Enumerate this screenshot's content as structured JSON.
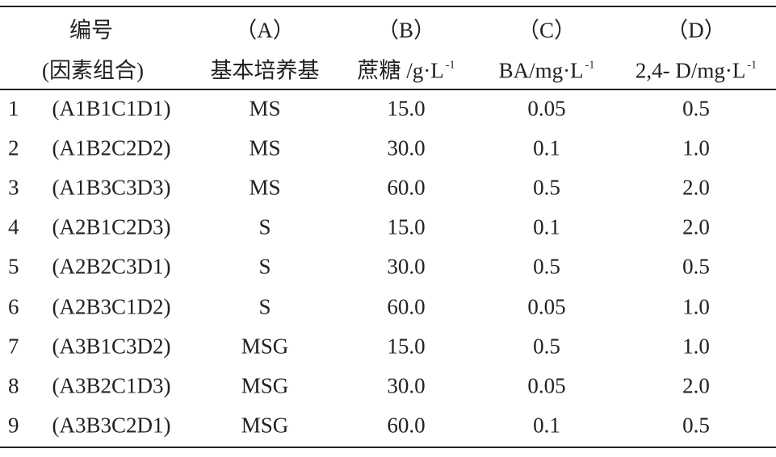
{
  "table": {
    "header": {
      "row1": [
        "编号",
        "（A）",
        "（B）",
        "（C）",
        "（D）"
      ],
      "row2": [
        {
          "text": "(因素组合)"
        },
        {
          "text": "基本培养基"
        },
        {
          "text": "蔗糖 /g·L",
          "sup": "-1"
        },
        {
          "text": "BA/mg·L",
          "sup": "-1"
        },
        {
          "text": "2,4- D/mg·L",
          "sup": "-1"
        }
      ]
    },
    "rows": [
      [
        "1",
        "(A1B1C1D1)",
        "MS",
        "15.0",
        "0.05",
        "0.5"
      ],
      [
        "2",
        "(A1B2C2D2)",
        "MS",
        "30.0",
        "0.1",
        "1.0"
      ],
      [
        "3",
        "(A1B3C3D3)",
        "MS",
        "60.0",
        "0.5",
        "2.0"
      ],
      [
        "4",
        "(A2B1C2D3)",
        "S",
        "15.0",
        "0.1",
        "2.0"
      ],
      [
        "5",
        "(A2B2C3D1)",
        "S",
        "30.0",
        "0.5",
        "0.5"
      ],
      [
        "6",
        "(A2B3C1D2)",
        "S",
        "60.0",
        "0.05",
        "1.0"
      ],
      [
        "7",
        "(A3B1C3D2)",
        "MSG",
        "15.0",
        "0.5",
        "1.0"
      ],
      [
        "8",
        "(A3B2C1D3)",
        "MSG",
        "30.0",
        "0.05",
        "2.0"
      ],
      [
        "9",
        "(A3B3C2D1)",
        "MSG",
        "60.0",
        "0.1",
        "0.5"
      ]
    ]
  }
}
